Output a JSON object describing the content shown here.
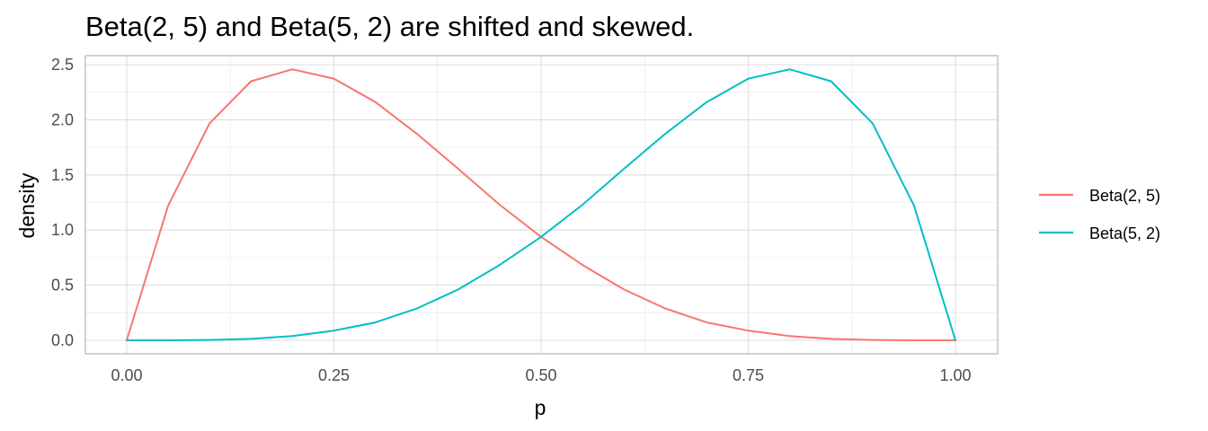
{
  "chart_data": {
    "type": "line",
    "title": "Beta(2, 5) and Beta(5, 2) are shifted and skewed.",
    "xlabel": "p",
    "ylabel": "density",
    "xlim": [
      0,
      1
    ],
    "ylim": [
      0,
      2.5
    ],
    "x_ticks": [
      "0.00",
      "0.25",
      "0.50",
      "0.75",
      "1.00"
    ],
    "y_ticks": [
      "0.0",
      "0.5",
      "1.0",
      "1.5",
      "2.0",
      "2.5"
    ],
    "grid": true,
    "legend_position": "right",
    "x": [
      0,
      0.05,
      0.1,
      0.15,
      0.2,
      0.25,
      0.3,
      0.35,
      0.4,
      0.45,
      0.5,
      0.55,
      0.6,
      0.65,
      0.7,
      0.75,
      0.8,
      0.85,
      0.9,
      0.95,
      1
    ],
    "series": [
      {
        "name": "Beta(2, 5)",
        "color": "#F8766D",
        "values": [
          0,
          1.222,
          1.968,
          2.349,
          2.458,
          2.373,
          2.161,
          1.874,
          1.555,
          1.23,
          0.938,
          0.683,
          0.461,
          0.288,
          0.162,
          0.0879,
          0.0384,
          0.0131,
          0.003,
          0.0003,
          0
        ]
      },
      {
        "name": "Beta(5, 2)",
        "color": "#00BFC4",
        "values": [
          0,
          0.0003,
          0.003,
          0.0131,
          0.0384,
          0.0879,
          0.162,
          0.288,
          0.461,
          0.683,
          0.938,
          1.23,
          1.555,
          1.874,
          2.161,
          2.373,
          2.458,
          2.349,
          1.968,
          1.222,
          0
        ]
      }
    ]
  }
}
